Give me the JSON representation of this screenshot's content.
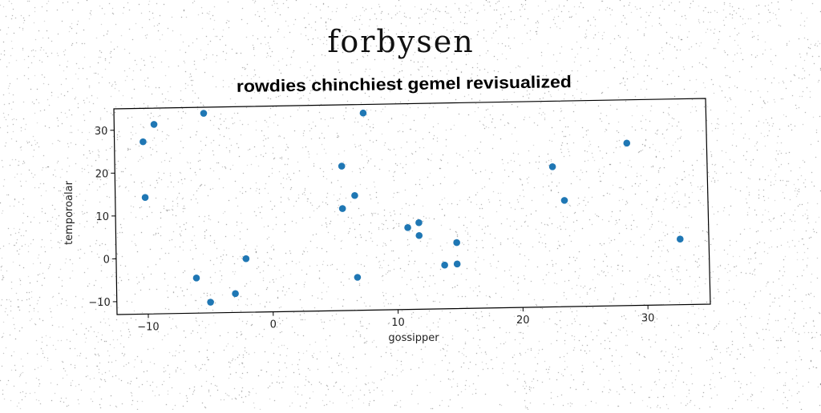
{
  "page": {
    "heading": "forbysen"
  },
  "colors": {
    "marker": "#1f77b4",
    "axis": "#000000",
    "background": "#ffffff"
  },
  "chart_data": {
    "type": "scatter",
    "title": "rowdies chinchiest gemel revisualized",
    "xlabel": "gossipper",
    "ylabel": "temporoalar",
    "xlim": [
      -12.5,
      35
    ],
    "ylim": [
      -13,
      35
    ],
    "xticks": [
      -10,
      0,
      10,
      20,
      30
    ],
    "yticks": [
      -10,
      0,
      10,
      20,
      30
    ],
    "grid": false,
    "series": [
      {
        "points": [
          [
            -10.2,
            27.2
          ],
          [
            -9.3,
            31.2
          ],
          [
            -10.1,
            14.2
          ],
          [
            -5.3,
            33.6
          ],
          [
            -6.1,
            -4.8
          ],
          [
            -5.0,
            -10.5
          ],
          [
            -3.0,
            -8.6
          ],
          [
            -2.1,
            -0.5
          ],
          [
            5.7,
            20.7
          ],
          [
            6.7,
            13.8
          ],
          [
            5.7,
            10.8
          ],
          [
            7.5,
            33.0
          ],
          [
            6.8,
            -5.3
          ],
          [
            10.9,
            6.1
          ],
          [
            11.8,
            7.2
          ],
          [
            11.8,
            4.2
          ],
          [
            13.8,
            -2.8
          ],
          [
            14.8,
            2.4
          ],
          [
            14.8,
            -2.6
          ],
          [
            22.6,
            19.7
          ],
          [
            23.5,
            11.8
          ],
          [
            28.6,
            24.9
          ],
          [
            32.7,
            2.3
          ]
        ]
      }
    ]
  }
}
